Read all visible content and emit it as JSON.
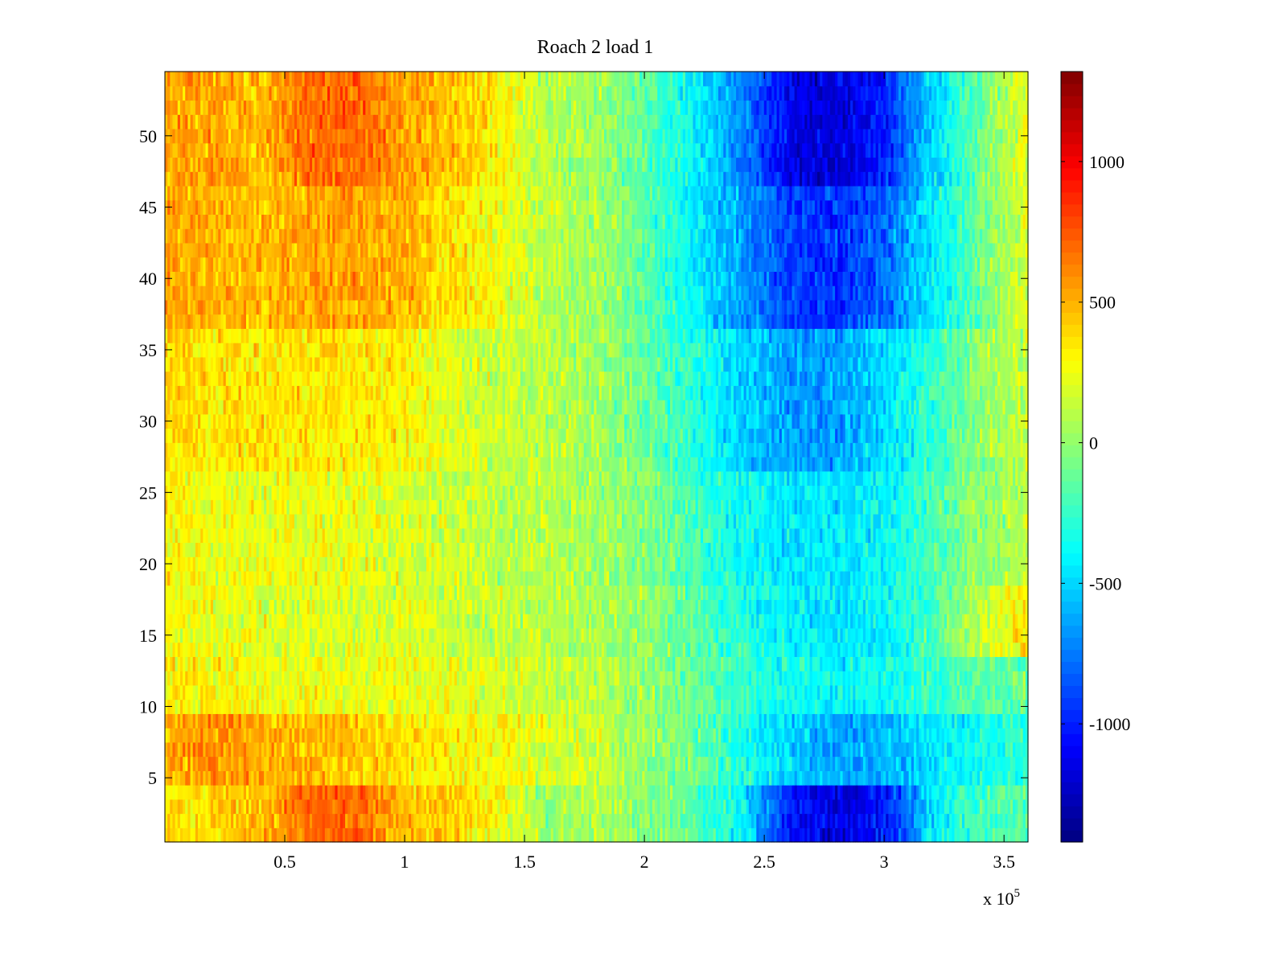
{
  "chart_data": {
    "type": "heatmap",
    "title": "Roach 2 load 1",
    "xlabel": "",
    "ylabel": "",
    "x_exponent_label": "x 10",
    "x_exponent": "5",
    "xlim": [
      0,
      360000
    ],
    "ylim": [
      0.5,
      54.5
    ],
    "x_ticks": [
      {
        "value": 50000,
        "label": "0.5"
      },
      {
        "value": 100000,
        "label": "1"
      },
      {
        "value": 150000,
        "label": "1.5"
      },
      {
        "value": 200000,
        "label": "2"
      },
      {
        "value": 250000,
        "label": "2.5"
      },
      {
        "value": 300000,
        "label": "3"
      },
      {
        "value": 350000,
        "label": "3.5"
      }
    ],
    "y_ticks": [
      {
        "value": 5,
        "label": "5"
      },
      {
        "value": 10,
        "label": "10"
      },
      {
        "value": 15,
        "label": "15"
      },
      {
        "value": 20,
        "label": "20"
      },
      {
        "value": 25,
        "label": "25"
      },
      {
        "value": 30,
        "label": "30"
      },
      {
        "value": 35,
        "label": "35"
      },
      {
        "value": 40,
        "label": "40"
      },
      {
        "value": 45,
        "label": "45"
      },
      {
        "value": 50,
        "label": "50"
      }
    ],
    "colormap": "jet",
    "clim": [
      -1420,
      1320
    ],
    "colorbar_ticks": [
      {
        "value": 1000,
        "label": "1000"
      },
      {
        "value": 500,
        "label": "500"
      },
      {
        "value": 0,
        "label": "0"
      },
      {
        "value": -500,
        "label": "-500"
      },
      {
        "value": -1000,
        "label": "-1000"
      }
    ],
    "rows": 54,
    "x_bins": [
      0,
      20000,
      40000,
      60000,
      80000,
      100000,
      120000,
      140000,
      160000,
      180000,
      200000,
      220000,
      240000,
      260000,
      280000,
      300000,
      320000,
      340000,
      360000
    ],
    "row_groups": [
      {
        "rows": [
          1,
          4
        ],
        "values": [
          350,
          380,
          480,
          700,
          720,
          450,
          420,
          250,
          0,
          100,
          -50,
          -150,
          -400,
          -1000,
          -1150,
          -1050,
          -450,
          -200,
          -150
        ]
      },
      {
        "rows": [
          5,
          9
        ],
        "values": [
          500,
          600,
          500,
          500,
          450,
          350,
          300,
          300,
          200,
          150,
          0,
          -100,
          -300,
          -500,
          -650,
          -600,
          -450,
          -350,
          -250
        ]
      },
      {
        "rows": [
          10,
          13
        ],
        "values": [
          350,
          300,
          250,
          250,
          250,
          250,
          200,
          200,
          150,
          100,
          0,
          -100,
          -250,
          -350,
          -400,
          -350,
          -250,
          -150,
          -100
        ]
      },
      {
        "rows": [
          14,
          18
        ],
        "values": [
          300,
          250,
          200,
          200,
          200,
          200,
          150,
          150,
          100,
          50,
          0,
          -150,
          -300,
          -400,
          -450,
          -400,
          -200,
          150,
          350
        ]
      },
      {
        "rows": [
          19,
          26
        ],
        "values": [
          300,
          250,
          250,
          250,
          250,
          200,
          150,
          100,
          100,
          50,
          -50,
          -200,
          -350,
          -450,
          -450,
          -400,
          -200,
          0,
          100
        ]
      },
      {
        "rows": [
          27,
          36
        ],
        "values": [
          400,
          350,
          350,
          350,
          350,
          300,
          200,
          150,
          100,
          50,
          -100,
          -300,
          -500,
          -650,
          -650,
          -500,
          -250,
          0,
          150
        ]
      },
      {
        "rows": [
          37,
          46
        ],
        "values": [
          550,
          500,
          450,
          550,
          550,
          500,
          350,
          250,
          100,
          50,
          -150,
          -400,
          -650,
          -900,
          -950,
          -800,
          -450,
          -100,
          200
        ]
      },
      {
        "rows": [
          47,
          54
        ],
        "values": [
          550,
          550,
          450,
          700,
          700,
          550,
          450,
          300,
          100,
          50,
          -150,
          -400,
          -700,
          -1100,
          -1200,
          -1000,
          -500,
          -100,
          250
        ]
      }
    ]
  }
}
